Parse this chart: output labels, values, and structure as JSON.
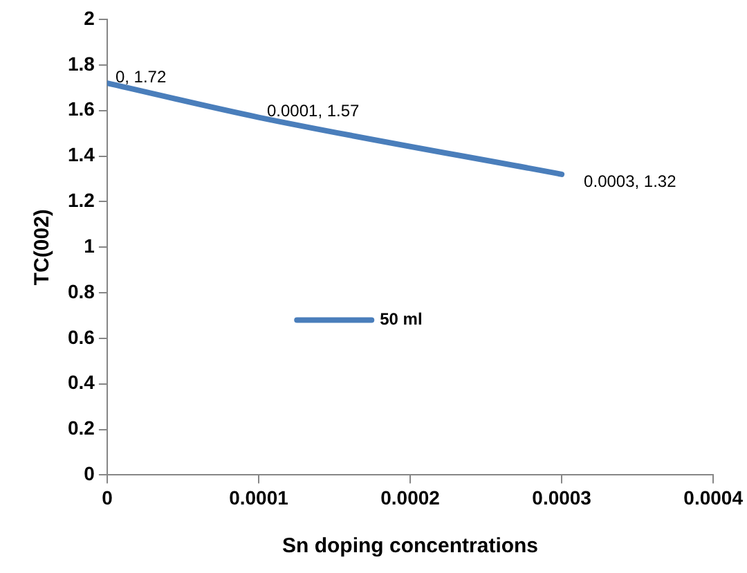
{
  "chart_data": {
    "type": "line",
    "xlabel": "Sn doping concentrations",
    "ylabel": "TC(002)",
    "series": [
      {
        "name": "50 ml",
        "color": "#4a7ebb",
        "x": [
          0,
          0.0001,
          0.0003
        ],
        "values": [
          1.72,
          1.57,
          1.32
        ],
        "value_labels": [
          "0, 1.72",
          "0.0001, 1.57",
          "0.0003, 1.32"
        ]
      }
    ],
    "xlim": [
      0,
      0.0004
    ],
    "xticks": [
      0,
      0.0001,
      0.0002,
      0.0003,
      0.0004
    ],
    "ylim": [
      0,
      2
    ],
    "yticks": [
      0,
      0.2,
      0.4,
      0.6,
      0.8,
      1,
      1.2,
      1.4,
      1.6,
      1.8,
      2
    ],
    "grid": false,
    "legend": "center",
    "marker": "none",
    "line_style": "solid"
  }
}
